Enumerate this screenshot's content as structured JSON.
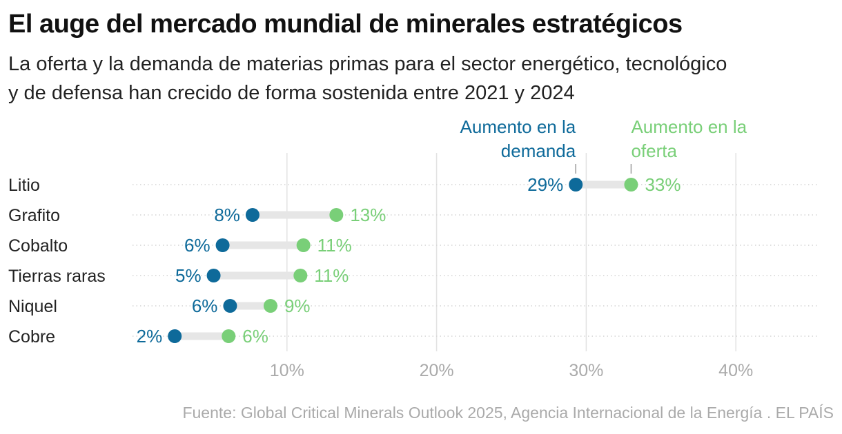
{
  "header": {
    "title": "El auge del mercado mundial de minerales estratégicos",
    "subtitle_line1": "La oferta y la demanda de materias primas para el sector energético, tecnológico",
    "subtitle_line2": "y de defensa han crecido de forma sostenida entre 2021 y 2024"
  },
  "colors": {
    "demand": "#0e6a9a",
    "supply": "#79cf78",
    "connector": "#e6e6e6",
    "grid": "#e2e2e2",
    "row_dots": "#d4d4d4",
    "tick": "#aaaaaa",
    "label": "#222222"
  },
  "chart_data": {
    "type": "dumbbell",
    "title": "El auge del mercado mundial de minerales estratégicos",
    "xlim": [
      0,
      45
    ],
    "xticks": [
      10,
      20,
      30,
      40
    ],
    "xtick_labels": [
      "10%",
      "20%",
      "30%",
      "40%"
    ],
    "legend": {
      "demand": [
        "Aumento en la",
        "demanda"
      ],
      "supply": [
        "Aumento en la",
        "oferta"
      ],
      "placement": "above first row"
    },
    "categories": [
      "Litio",
      "Grafito",
      "Cobalto",
      "Tierras raras",
      "Niquel",
      "Cobre"
    ],
    "series": [
      {
        "name": "Aumento en la demanda",
        "key": "demand",
        "values": [
          29.3,
          7.7,
          5.7,
          5.1,
          6.2,
          2.5
        ],
        "labels": [
          "29%",
          "8%",
          "6%",
          "5%",
          "6%",
          "2%"
        ]
      },
      {
        "name": "Aumento en la oferta",
        "key": "supply",
        "values": [
          33.0,
          13.3,
          11.1,
          10.9,
          8.9,
          6.1
        ],
        "labels": [
          "33%",
          "13%",
          "11%",
          "11%",
          "9%",
          "6%"
        ]
      }
    ]
  },
  "footer": {
    "source": "Fuente: Global Critical Minerals Outlook 2025, Agencia Internacional de la Energía . EL PAÍS"
  }
}
